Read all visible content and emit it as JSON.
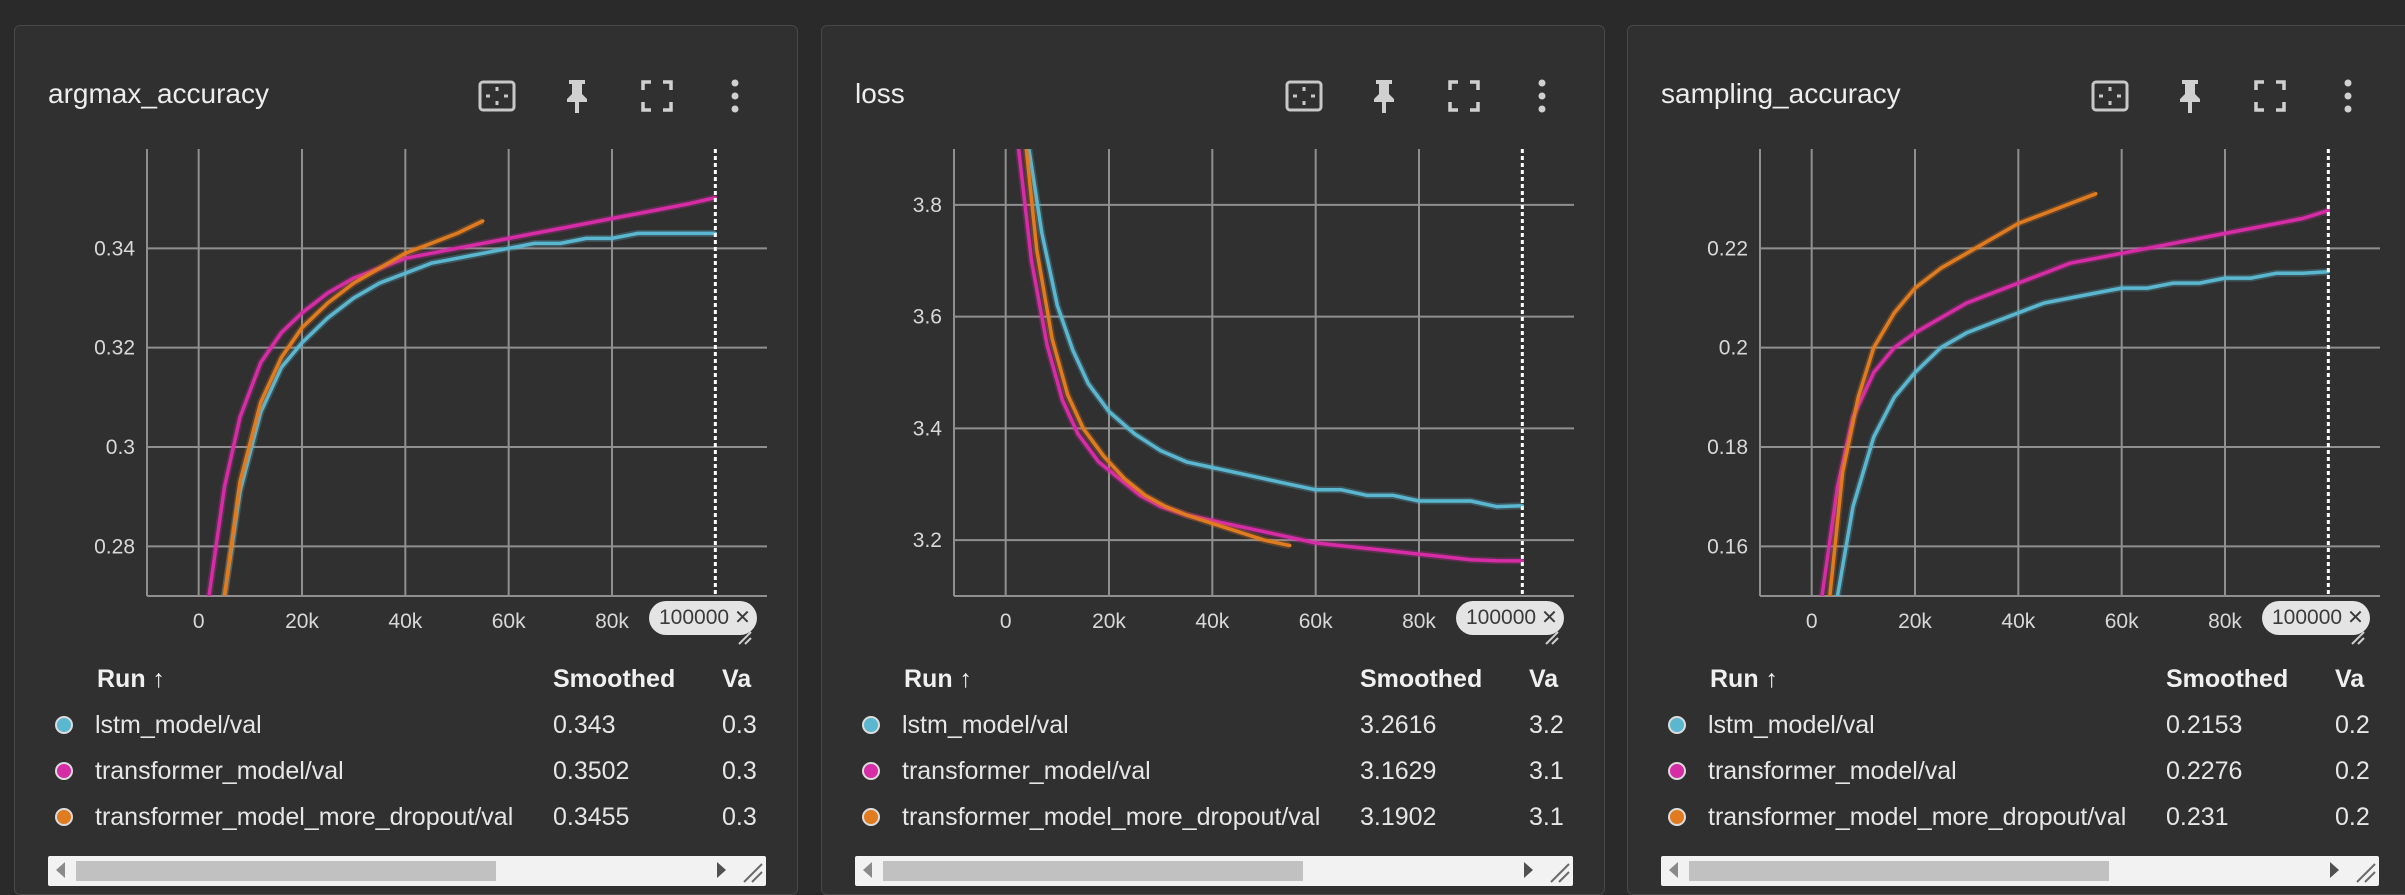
{
  "colors": {
    "lstm": "#5bb6cf",
    "transformer": "#d62ca6",
    "dropout": "#e07b1f",
    "grid": "#8f8f8f",
    "panel": "#303030"
  },
  "header_icons": [
    "fit-domain-icon",
    "pin-icon",
    "fullscreen-icon",
    "more-vert-icon"
  ],
  "table_headers": {
    "run": "Run ↑",
    "smoothed": "Smoothed",
    "value": "Va"
  },
  "panels": [
    {
      "title": "argmax_accuracy",
      "cursor_tag": "100000",
      "tag_close": "✕",
      "rows": [
        {
          "run": "lstm_model/val",
          "color": "#5bb6cf",
          "smoothed": "0.343",
          "value": "0.3"
        },
        {
          "run": "transformer_model/val",
          "color": "#d62ca6",
          "smoothed": "0.3502",
          "value": "0.3"
        },
        {
          "run": "transformer_model_more_dropout/val",
          "color": "#e07b1f",
          "smoothed": "0.3455",
          "value": "0.3"
        }
      ]
    },
    {
      "title": "loss",
      "cursor_tag": "100000",
      "tag_close": "✕",
      "rows": [
        {
          "run": "lstm_model/val",
          "color": "#5bb6cf",
          "smoothed": "3.2616",
          "value": "3.2"
        },
        {
          "run": "transformer_model/val",
          "color": "#d62ca6",
          "smoothed": "3.1629",
          "value": "3.1"
        },
        {
          "run": "transformer_model_more_dropout/val",
          "color": "#e07b1f",
          "smoothed": "3.1902",
          "value": "3.1"
        }
      ]
    },
    {
      "title": "sampling_accuracy",
      "cursor_tag": "100000",
      "tag_close": "✕",
      "rows": [
        {
          "run": "lstm_model/val",
          "color": "#5bb6cf",
          "smoothed": "0.2153",
          "value": "0.2"
        },
        {
          "run": "transformer_model/val",
          "color": "#d62ca6",
          "smoothed": "0.2276",
          "value": "0.2"
        },
        {
          "run": "transformer_model_more_dropout/val",
          "color": "#e07b1f",
          "smoothed": "0.231",
          "value": "0.2"
        }
      ]
    }
  ],
  "chart_data": [
    {
      "type": "line",
      "title": "argmax_accuracy",
      "xlim": [
        -10000,
        110000
      ],
      "ylim": [
        0.27,
        0.36
      ],
      "xticks": [
        0,
        20000,
        40000,
        60000,
        80000
      ],
      "xtick_labels": [
        "0",
        "20k",
        "40k",
        "60k",
        "80k"
      ],
      "yticks": [
        0.28,
        0.3,
        0.32,
        0.34
      ],
      "ytick_labels": [
        "0.28",
        "0.3",
        "0.32",
        "0.34"
      ],
      "cursor_x": 100000,
      "series": [
        {
          "name": "lstm_model/val",
          "color": "#5bb6cf",
          "x": [
            5000,
            8000,
            12000,
            16000,
            20000,
            25000,
            30000,
            35000,
            40000,
            45000,
            50000,
            55000,
            60000,
            65000,
            70000,
            75000,
            80000,
            85000,
            90000,
            95000,
            100000
          ],
          "y": [
            0.27,
            0.291,
            0.307,
            0.316,
            0.321,
            0.326,
            0.33,
            0.333,
            0.335,
            0.337,
            0.338,
            0.339,
            0.34,
            0.341,
            0.341,
            0.342,
            0.342,
            0.343,
            0.343,
            0.343,
            0.343
          ]
        },
        {
          "name": "transformer_model/val",
          "color": "#d62ca6",
          "x": [
            2000,
            5000,
            8000,
            12000,
            16000,
            20000,
            25000,
            30000,
            35000,
            40000,
            45000,
            50000,
            55000,
            60000,
            65000,
            70000,
            75000,
            80000,
            85000,
            90000,
            95000,
            100000
          ],
          "y": [
            0.27,
            0.292,
            0.306,
            0.317,
            0.323,
            0.327,
            0.331,
            0.334,
            0.336,
            0.338,
            0.339,
            0.34,
            0.341,
            0.342,
            0.343,
            0.344,
            0.345,
            0.346,
            0.347,
            0.348,
            0.349,
            0.3502
          ]
        },
        {
          "name": "transformer_model_more_dropout/val",
          "color": "#e07b1f",
          "x": [
            5000,
            8000,
            12000,
            16000,
            20000,
            25000,
            30000,
            35000,
            40000,
            45000,
            50000,
            55000
          ],
          "y": [
            0.27,
            0.293,
            0.309,
            0.318,
            0.324,
            0.329,
            0.333,
            0.336,
            0.339,
            0.341,
            0.343,
            0.3455
          ]
        }
      ]
    },
    {
      "type": "line",
      "title": "loss",
      "xlim": [
        -10000,
        110000
      ],
      "ylim": [
        3.1,
        3.9
      ],
      "xticks": [
        0,
        20000,
        40000,
        60000,
        80000
      ],
      "xtick_labels": [
        "0",
        "20k",
        "40k",
        "60k",
        "80k"
      ],
      "yticks": [
        3.2,
        3.4,
        3.6,
        3.8
      ],
      "ytick_labels": [
        "3.2",
        "3.4",
        "3.6",
        "3.8"
      ],
      "cursor_x": 100000,
      "series": [
        {
          "name": "lstm_model/val",
          "color": "#5bb6cf",
          "x": [
            4500,
            7000,
            10000,
            13000,
            16000,
            20000,
            25000,
            30000,
            35000,
            40000,
            45000,
            50000,
            55000,
            60000,
            65000,
            70000,
            75000,
            80000,
            85000,
            90000,
            95000,
            100000
          ],
          "y": [
            3.9,
            3.75,
            3.62,
            3.54,
            3.48,
            3.43,
            3.39,
            3.36,
            3.34,
            3.33,
            3.32,
            3.31,
            3.3,
            3.29,
            3.29,
            3.28,
            3.28,
            3.27,
            3.27,
            3.27,
            3.26,
            3.2616
          ]
        },
        {
          "name": "transformer_model/val",
          "color": "#d62ca6",
          "x": [
            2500,
            5000,
            8000,
            11000,
            14000,
            18000,
            22000,
            26000,
            30000,
            35000,
            40000,
            45000,
            50000,
            55000,
            60000,
            65000,
            70000,
            75000,
            80000,
            85000,
            90000,
            95000,
            100000
          ],
          "y": [
            3.9,
            3.7,
            3.55,
            3.45,
            3.39,
            3.34,
            3.31,
            3.28,
            3.26,
            3.245,
            3.235,
            3.225,
            3.215,
            3.205,
            3.195,
            3.19,
            3.185,
            3.18,
            3.175,
            3.17,
            3.165,
            3.163,
            3.1629
          ]
        },
        {
          "name": "transformer_model_more_dropout/val",
          "color": "#e07b1f",
          "x": [
            4000,
            6000,
            9000,
            12000,
            15000,
            19000,
            23000,
            27000,
            31000,
            35000,
            40000,
            45000,
            50000,
            55000
          ],
          "y": [
            3.9,
            3.72,
            3.56,
            3.46,
            3.4,
            3.35,
            3.31,
            3.28,
            3.26,
            3.245,
            3.23,
            3.215,
            3.2,
            3.1902
          ]
        }
      ]
    },
    {
      "type": "line",
      "title": "sampling_accuracy",
      "xlim": [
        -10000,
        110000
      ],
      "ylim": [
        0.15,
        0.24
      ],
      "xticks": [
        0,
        20000,
        40000,
        60000,
        80000
      ],
      "xtick_labels": [
        "0",
        "20k",
        "40k",
        "60k",
        "80k"
      ],
      "yticks": [
        0.16,
        0.18,
        0.2,
        0.22
      ],
      "ytick_labels": [
        "0.16",
        "0.18",
        "0.2",
        "0.22"
      ],
      "cursor_x": 100000,
      "series": [
        {
          "name": "lstm_model/val",
          "color": "#5bb6cf",
          "x": [
            5000,
            8000,
            12000,
            16000,
            20000,
            25000,
            30000,
            35000,
            40000,
            45000,
            50000,
            55000,
            60000,
            65000,
            70000,
            75000,
            80000,
            85000,
            90000,
            95000,
            100000
          ],
          "y": [
            0.15,
            0.168,
            0.182,
            0.19,
            0.195,
            0.2,
            0.203,
            0.205,
            0.207,
            0.209,
            0.21,
            0.211,
            0.212,
            0.212,
            0.213,
            0.213,
            0.214,
            0.214,
            0.215,
            0.215,
            0.2153
          ]
        },
        {
          "name": "transformer_model/val",
          "color": "#d62ca6",
          "x": [
            2000,
            5000,
            8000,
            12000,
            16000,
            20000,
            25000,
            30000,
            35000,
            40000,
            45000,
            50000,
            55000,
            60000,
            65000,
            70000,
            75000,
            80000,
            85000,
            90000,
            95000,
            100000
          ],
          "y": [
            0.15,
            0.172,
            0.186,
            0.195,
            0.2,
            0.203,
            0.206,
            0.209,
            0.211,
            0.213,
            0.215,
            0.217,
            0.218,
            0.219,
            0.22,
            0.221,
            0.222,
            0.223,
            0.224,
            0.225,
            0.226,
            0.2276
          ]
        },
        {
          "name": "transformer_model_more_dropout/val",
          "color": "#e07b1f",
          "x": [
            3500,
            6000,
            9000,
            12000,
            16000,
            20000,
            25000,
            30000,
            35000,
            40000,
            45000,
            50000,
            55000
          ],
          "y": [
            0.15,
            0.175,
            0.19,
            0.2,
            0.207,
            0.212,
            0.216,
            0.219,
            0.222,
            0.225,
            0.227,
            0.229,
            0.231
          ]
        }
      ]
    }
  ]
}
